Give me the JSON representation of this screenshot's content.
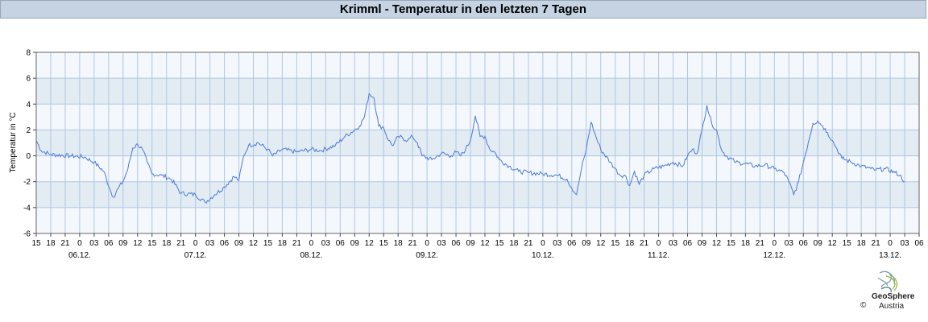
{
  "chart_data": {
    "type": "line",
    "title": "Krimml - Temperatur in den letzten 7 Tagen",
    "ylabel": "Temperatur in °C",
    "ylim": [
      -6,
      8
    ],
    "yticks": [
      -6,
      -4,
      -2,
      0,
      2,
      4,
      6,
      8
    ],
    "xlim": [
      "05.12. 15:00",
      "13.12. 06:00"
    ],
    "hour_ticks": [
      "15",
      "18",
      "21",
      "0",
      "03",
      "06",
      "09",
      "12",
      "15",
      "18",
      "21",
      "0",
      "03",
      "06",
      "09",
      "12",
      "15",
      "18",
      "21",
      "0",
      "03",
      "06",
      "09",
      "12",
      "15",
      "18",
      "21",
      "0",
      "03",
      "06",
      "09",
      "12",
      "15",
      "18",
      "21",
      "0",
      "03",
      "06",
      "09",
      "12",
      "15",
      "18",
      "21",
      "0",
      "03",
      "06",
      "09",
      "12",
      "15",
      "18",
      "21",
      "0",
      "03",
      "06",
      "09",
      "12",
      "15",
      "18",
      "21",
      "0",
      "03",
      "06"
    ],
    "date_labels": [
      "06.12.",
      "07.12.",
      "08.12.",
      "09.12.",
      "10.12.",
      "11.12.",
      "12.12.",
      "13.12."
    ],
    "grid": true,
    "series": [
      {
        "color": "#4a7bd6",
        "points": [
          [
            "05.12. 15:00",
            1.2
          ],
          [
            "05.12. 16:00",
            0.4
          ],
          [
            "05.12. 18:00",
            0.1
          ],
          [
            "05.12. 22:00",
            0.0
          ],
          [
            "06.12. 01:00",
            -0.1
          ],
          [
            "06.12. 03:00",
            -0.5
          ],
          [
            "06.12. 05:00",
            -1.2
          ],
          [
            "06.12. 06:30",
            -2.8
          ],
          [
            "06.12. 07:00",
            -3.2
          ],
          [
            "06.12. 08:00",
            -2.5
          ],
          [
            "06.12. 09:00",
            -2.0
          ],
          [
            "06.12. 10:00",
            -1.0
          ],
          [
            "06.12. 11:00",
            0.6
          ],
          [
            "06.12. 12:00",
            0.9
          ],
          [
            "06.12. 13:00",
            0.5
          ],
          [
            "06.12. 14:00",
            -0.5
          ],
          [
            "06.12. 15:00",
            -1.4
          ],
          [
            "06.12. 17:00",
            -1.5
          ],
          [
            "06.12. 19:00",
            -1.8
          ],
          [
            "06.12. 21:00",
            -2.9
          ],
          [
            "07.12. 00:00",
            -3.0
          ],
          [
            "07.12. 02:00",
            -3.6
          ],
          [
            "07.12. 04:00",
            -3.0
          ],
          [
            "07.12. 06:00",
            -2.4
          ],
          [
            "07.12. 08:00",
            -1.6
          ],
          [
            "07.12. 09:00",
            -1.9
          ],
          [
            "07.12. 10:00",
            0.0
          ],
          [
            "07.12. 11:00",
            0.8
          ],
          [
            "07.12. 13:00",
            1.0
          ],
          [
            "07.12. 15:00",
            0.5
          ],
          [
            "07.12. 16:00",
            0.0
          ],
          [
            "07.12. 18:00",
            0.5
          ],
          [
            "07.12. 21:00",
            0.3
          ],
          [
            "08.12. 00:00",
            0.5
          ],
          [
            "08.12. 02:00",
            0.4
          ],
          [
            "08.12. 05:00",
            0.8
          ],
          [
            "08.12. 07:00",
            1.5
          ],
          [
            "08.12. 09:00",
            2.0
          ],
          [
            "08.12. 10:00",
            2.3
          ],
          [
            "08.12. 11:00",
            3.0
          ],
          [
            "08.12. 12:00",
            4.8
          ],
          [
            "08.12. 13:00",
            4.5
          ],
          [
            "08.12. 14:00",
            2.3
          ],
          [
            "08.12. 15:00",
            2.2
          ],
          [
            "08.12. 16:00",
            1.2
          ],
          [
            "08.12. 17:00",
            0.8
          ],
          [
            "08.12. 18:00",
            1.5
          ],
          [
            "08.12. 20:00",
            1.2
          ],
          [
            "08.12. 21:00",
            1.5
          ],
          [
            "08.12. 22:00",
            1.0
          ],
          [
            "08.12. 23:00",
            0.0
          ],
          [
            "09.12. 01:00",
            -0.3
          ],
          [
            "09.12. 03:00",
            0.2
          ],
          [
            "09.12. 05:00",
            0.0
          ],
          [
            "09.12. 06:00",
            0.3
          ],
          [
            "09.12. 07:00",
            0.0
          ],
          [
            "09.12. 08:00",
            0.5
          ],
          [
            "09.12. 09:00",
            1.2
          ],
          [
            "09.12. 10:00",
            3.1
          ],
          [
            "09.12. 11:00",
            1.5
          ],
          [
            "09.12. 12:00",
            1.5
          ],
          [
            "09.12. 13:00",
            0.5
          ],
          [
            "09.12. 14:00",
            0.3
          ],
          [
            "09.12. 15:00",
            -0.3
          ],
          [
            "09.12. 17:00",
            -0.8
          ],
          [
            "09.12. 19:00",
            -1.2
          ],
          [
            "09.12. 21:00",
            -1.3
          ],
          [
            "10.12. 00:00",
            -1.4
          ],
          [
            "10.12. 03:00",
            -1.5
          ],
          [
            "10.12. 05:00",
            -1.8
          ],
          [
            "10.12. 06:00",
            -2.5
          ],
          [
            "10.12. 07:00",
            -3.0
          ],
          [
            "10.12. 08:00",
            -1.0
          ],
          [
            "10.12. 09:00",
            0.5
          ],
          [
            "10.12. 10:00",
            2.6
          ],
          [
            "10.12. 11:00",
            1.5
          ],
          [
            "10.12. 12:00",
            0.5
          ],
          [
            "10.12. 14:00",
            -0.5
          ],
          [
            "10.12. 15:00",
            -1.0
          ],
          [
            "10.12. 16:00",
            -1.5
          ],
          [
            "10.12. 17:00",
            -1.5
          ],
          [
            "10.12. 18:00",
            -2.3
          ],
          [
            "10.12. 19:00",
            -1.2
          ],
          [
            "10.12. 20:00",
            -2.2
          ],
          [
            "10.12. 21:00",
            -1.5
          ],
          [
            "10.12. 23:00",
            -1.0
          ],
          [
            "11.12. 01:00",
            -0.8
          ],
          [
            "11.12. 03:00",
            -0.5
          ],
          [
            "11.12. 05:00",
            -0.8
          ],
          [
            "11.12. 06:00",
            0.0
          ],
          [
            "11.12. 07:00",
            0.5
          ],
          [
            "11.12. 08:00",
            0.2
          ],
          [
            "11.12. 09:00",
            2.0
          ],
          [
            "11.12. 10:00",
            3.9
          ],
          [
            "11.12. 11:00",
            2.5
          ],
          [
            "11.12. 12:00",
            2.0
          ],
          [
            "11.12. 13:00",
            0.5
          ],
          [
            "11.12. 14:00",
            0.0
          ],
          [
            "11.12. 16:00",
            -0.5
          ],
          [
            "11.12. 18:00",
            -0.6
          ],
          [
            "11.12. 20:00",
            -0.8
          ],
          [
            "11.12. 22:00",
            -0.7
          ],
          [
            "12.12. 00:00",
            -1.0
          ],
          [
            "12.12. 02:00",
            -1.3
          ],
          [
            "12.12. 03:00",
            -2.0
          ],
          [
            "12.12. 04:00",
            -3.0
          ],
          [
            "12.12. 05:00",
            -2.0
          ],
          [
            "12.12. 06:00",
            -0.5
          ],
          [
            "12.12. 07:00",
            1.0
          ],
          [
            "12.12. 08:00",
            2.5
          ],
          [
            "12.12. 09:00",
            2.7
          ],
          [
            "12.12. 10:00",
            2.3
          ],
          [
            "12.12. 11:00",
            1.8
          ],
          [
            "12.12. 12:00",
            1.2
          ],
          [
            "12.12. 13:00",
            0.5
          ],
          [
            "12.12. 14:00",
            -0.2
          ],
          [
            "12.12. 16:00",
            -0.5
          ],
          [
            "12.12. 18:00",
            -0.8
          ],
          [
            "12.12. 20:00",
            -1.0
          ],
          [
            "12.12. 21:00",
            -1.1
          ],
          [
            "12.12. 23:00",
            -1.0
          ],
          [
            "13.12. 01:00",
            -1.3
          ],
          [
            "13.12. 02:00",
            -1.5
          ],
          [
            "13.12. 03:00",
            -2.0
          ]
        ]
      }
    ]
  },
  "footer": {
    "copyright": "©",
    "logo_name": "GeoSphere",
    "logo_sub": "Austria",
    "logo_icon": "geosphere-logo-icon"
  }
}
